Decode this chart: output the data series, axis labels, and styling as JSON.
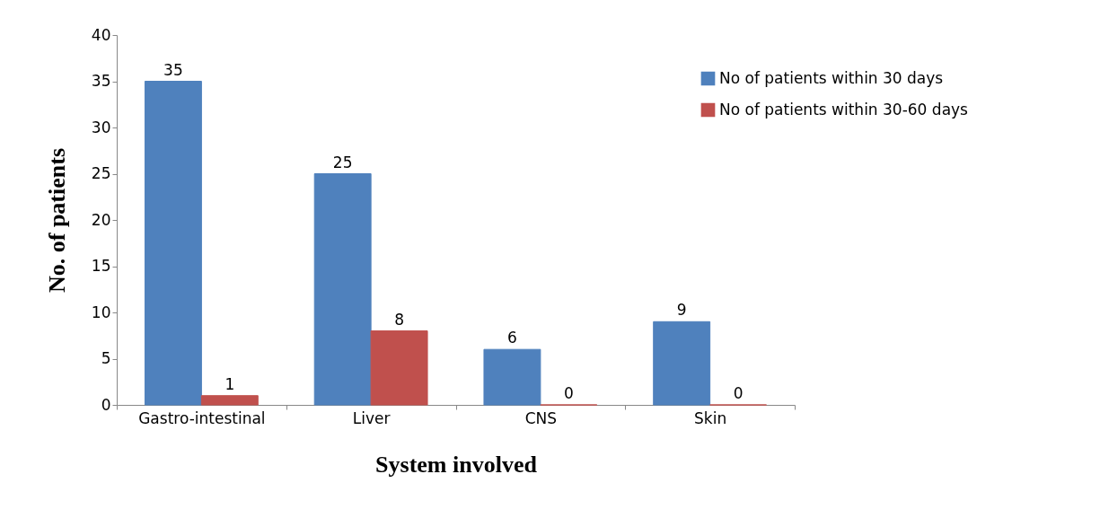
{
  "chart_data": {
    "type": "bar",
    "xlabel": "System involved",
    "ylabel": "No. of patients",
    "categories": [
      "Gastro-intestinal",
      "Liver",
      "CNS",
      "Skin"
    ],
    "series": [
      {
        "name": "No of patients within 30 days",
        "color": "#4f81bd",
        "values": [
          35,
          25,
          6,
          9
        ]
      },
      {
        "name": "No of patients within 30-60 days",
        "color": "#c0504d",
        "values": [
          1,
          8,
          0,
          0
        ]
      }
    ],
    "ylim": [
      0,
      40
    ],
    "yticks": [
      0,
      5,
      10,
      15,
      20,
      25,
      30,
      35,
      40
    ],
    "grid": false,
    "legend": "top right",
    "data_labels": true
  }
}
